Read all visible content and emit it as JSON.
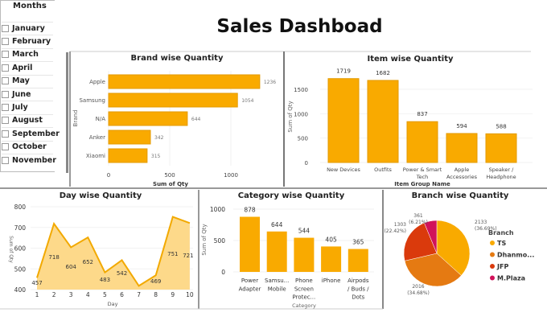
{
  "title": "Sales Dashboad",
  "slicer": {
    "title": "Months",
    "items": [
      "January",
      "February",
      "March",
      "April",
      "May",
      "June",
      "July",
      "August",
      "September",
      "October",
      "November"
    ]
  },
  "colors": {
    "bar": "#F9AA00",
    "bar_stroke": "#E39A00",
    "area": "#FDD98A",
    "line": "#F2A900",
    "pie": [
      "#F9AA00",
      "#E57A12",
      "#DA3A0C",
      "#D1125A"
    ]
  },
  "chart_data": [
    {
      "id": "brand",
      "type": "bar",
      "orientation": "horizontal",
      "title": "Brand wise Quantity",
      "xlabel": "Sum of Qty",
      "ylabel": "Brand",
      "categories": [
        "Apple",
        "Samsung",
        "N/A",
        "Anker",
        "Xiaomi"
      ],
      "values": [
        1236,
        1054,
        644,
        342,
        315
      ],
      "xticks": [
        0,
        500,
        1000
      ],
      "xlim": [
        0,
        1300
      ]
    },
    {
      "id": "item",
      "type": "bar",
      "title": "Item wise Quantity",
      "xlabel": "Item Group Name",
      "ylabel": "Sum of Qty",
      "categories": [
        [
          "New Devices"
        ],
        [
          "Outfits"
        ],
        [
          "Power & Smart",
          "Tech"
        ],
        [
          "Apple",
          "Accessories"
        ],
        [
          "Speaker /",
          "Headphone"
        ]
      ],
      "values": [
        1719,
        1682,
        837,
        594,
        588
      ],
      "yticks": [
        0,
        500,
        1000,
        1500
      ],
      "ylim": [
        0,
        1800
      ]
    },
    {
      "id": "day",
      "type": "area",
      "title": "Day wise Quantity",
      "xlabel": "Day",
      "ylabel": "Sum of Qty",
      "x": [
        1,
        2,
        3,
        4,
        5,
        6,
        7,
        8,
        9,
        10
      ],
      "values": [
        457,
        718,
        604,
        652,
        483,
        542,
        418,
        469,
        751,
        721
      ],
      "labels": [
        "457",
        "718",
        "604",
        "652",
        "483",
        "542",
        "",
        "469",
        "751",
        "721"
      ],
      "yticks": [
        400,
        500,
        600,
        700,
        800
      ],
      "ylim": [
        400,
        800
      ]
    },
    {
      "id": "category",
      "type": "bar",
      "title": "Category wise Quantity",
      "xlabel": "Category",
      "ylabel": "Sum of Qty",
      "categories": [
        [
          "Power",
          "Adapter"
        ],
        [
          "Samsu...",
          "Mobile"
        ],
        [
          "Phone",
          "Screen",
          "Protec..."
        ],
        [
          "iPhone"
        ],
        [
          "Airpods",
          "/ Buds /",
          "Dots"
        ]
      ],
      "values": [
        878,
        644,
        544,
        405,
        365
      ],
      "yticks": [
        0,
        500,
        1000
      ],
      "ylim": [
        0,
        1000
      ]
    },
    {
      "id": "branch",
      "type": "pie",
      "title": "Branch wise Quantity",
      "legend_title": "Branch",
      "legend_position": "right",
      "categories": [
        "TS",
        "Dhanmo...",
        "JFP",
        "M.Plaza"
      ],
      "values": [
        2133,
        2016,
        1303,
        361
      ],
      "labels": [
        [
          "2133",
          "(36.69%)"
        ],
        [
          "2016",
          "(34.68%)"
        ],
        [
          "1303",
          "(22.42%)"
        ],
        [
          "361",
          "(6.21%)"
        ]
      ]
    }
  ]
}
